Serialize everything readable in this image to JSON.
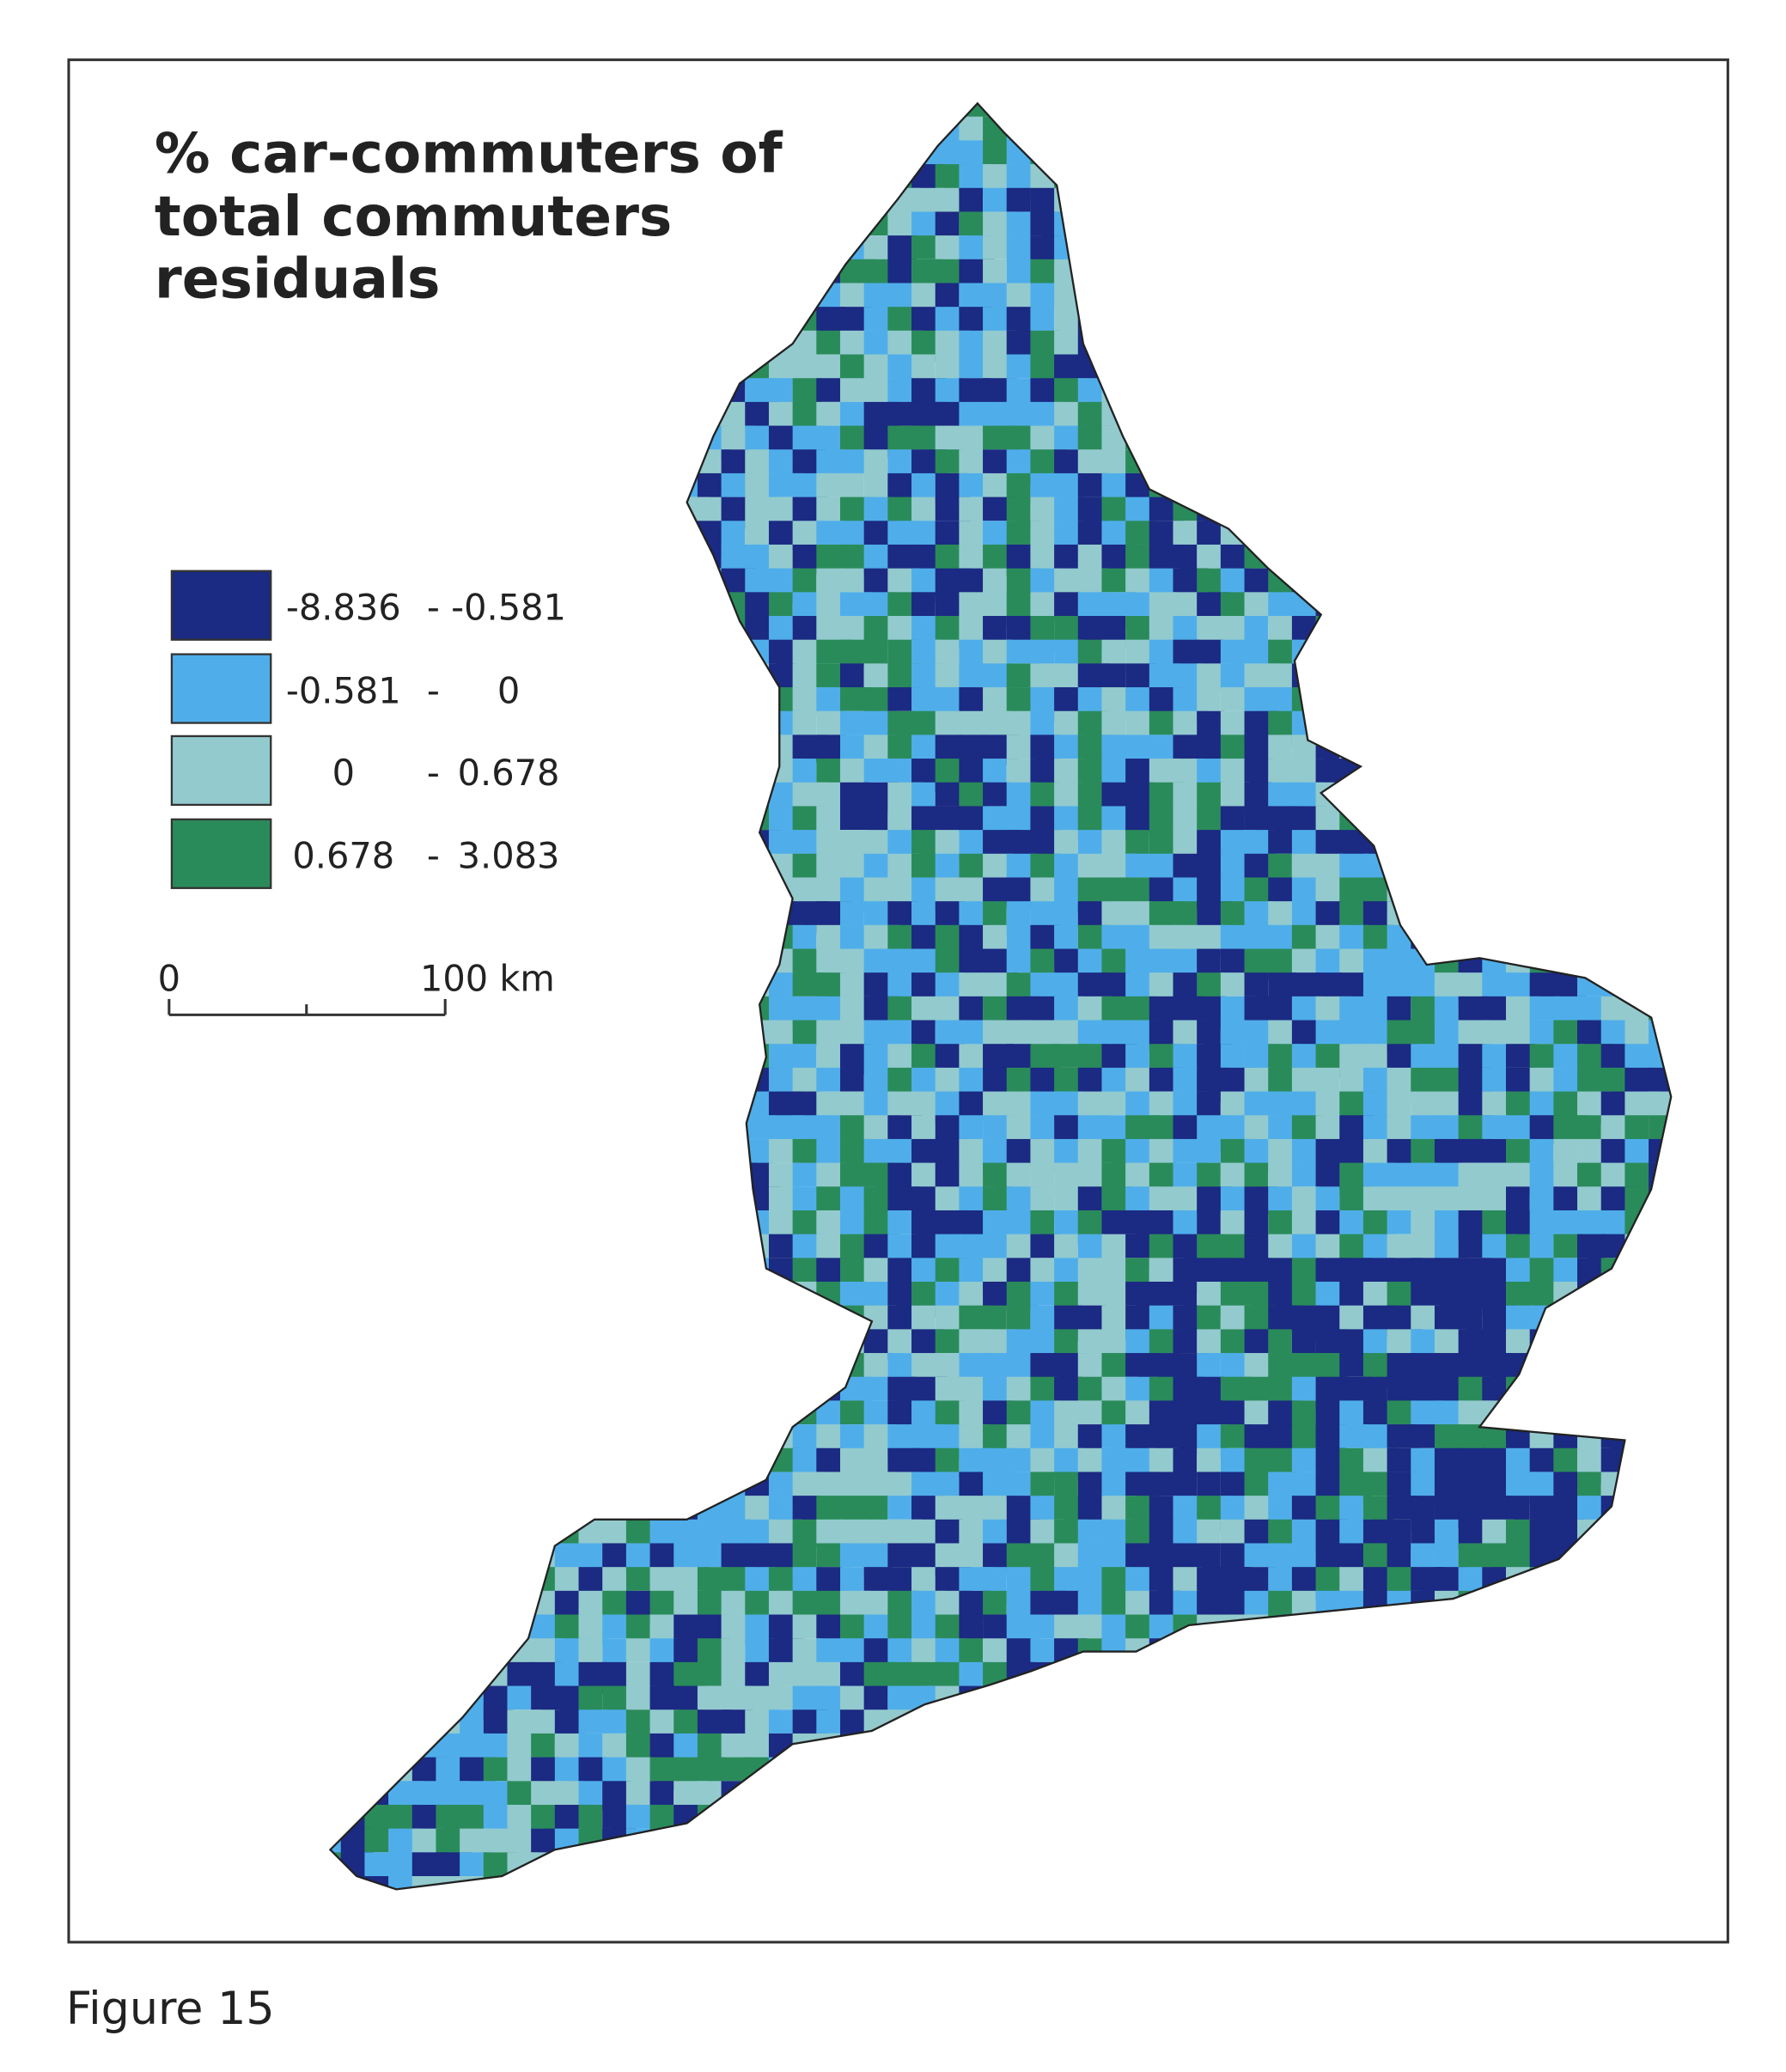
{
  "title": {
    "lines": [
      "% car-commuters of",
      "total commuters",
      "residuals"
    ]
  },
  "legend": {
    "separator": "-",
    "items": [
      {
        "min": -8.836,
        "max": -0.581,
        "color": "#1b2a82"
      },
      {
        "min": -0.581,
        "max": 0,
        "color": "#4faeea"
      },
      {
        "min": 0,
        "max": 0.678,
        "color": "#93cace"
      },
      {
        "min": 0.678,
        "max": 3.083,
        "color": "#2a8b5a"
      }
    ]
  },
  "scale_bar": {
    "start": 0,
    "end_label": "100 km"
  },
  "caption": "Figure 15"
}
